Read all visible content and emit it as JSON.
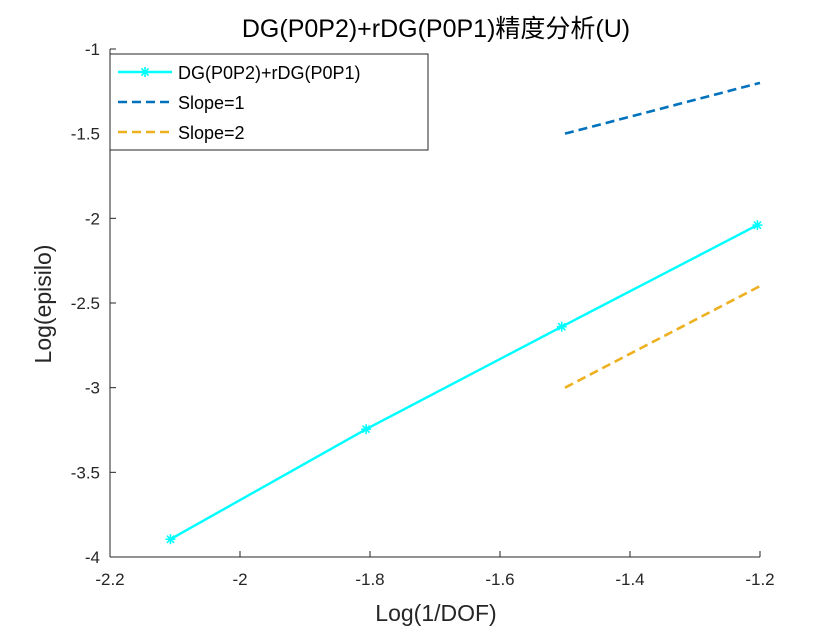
{
  "chart_data": {
    "type": "line",
    "title": "DG(P0P2)+rDG(P0P1)精度分析(U)",
    "xlabel": "Log(1/DOF)",
    "ylabel": "Log(episilo)",
    "xlim": [
      -2.2,
      -1.2
    ],
    "ylim": [
      -4,
      -1
    ],
    "xticks": [
      -2.2,
      -2,
      -1.8,
      -1.6,
      -1.4,
      -1.2
    ],
    "xtick_labels": [
      "-2.2",
      "-2",
      "-1.8",
      "-1.6",
      "-1.4",
      "-1.2"
    ],
    "yticks": [
      -4,
      -3.5,
      -3,
      -2.5,
      -2,
      -1.5,
      -1
    ],
    "ytick_labels": [
      "-4",
      "-3.5",
      "-3",
      "-2.5",
      "-2",
      "-1.5",
      "-1"
    ],
    "grid": false,
    "legend_position": "top-left",
    "series": [
      {
        "name": "DG(P0P2)+rDG(P0P1)",
        "style": "solid",
        "marker": "asterisk",
        "color": "#00ffff",
        "x": [
          -2.107,
          -1.806,
          -1.505,
          -1.204
        ],
        "y": [
          -3.895,
          -3.245,
          -2.64,
          -2.04
        ]
      },
      {
        "name": "Slope=1",
        "style": "dashed",
        "marker": "none",
        "color": "#0072bd",
        "x": [
          -1.5,
          -1.2
        ],
        "y": [
          -1.5,
          -1.2
        ]
      },
      {
        "name": "Slope=2",
        "style": "dashed",
        "marker": "none",
        "color": "#edb120",
        "x": [
          -1.5,
          -1.2
        ],
        "y": [
          -3.0,
          -2.4
        ]
      }
    ]
  }
}
